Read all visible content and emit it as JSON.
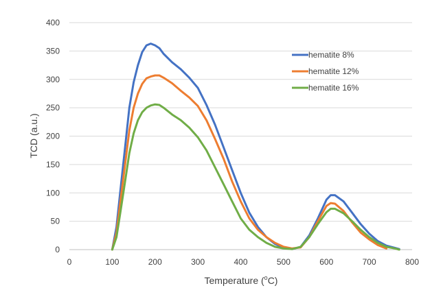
{
  "chart_data": {
    "type": "line",
    "xlabel_main": "Temperature (",
    "xlabel_sup": "o",
    "xlabel_tail": "C)",
    "ylabel": "TCD (a.u.)",
    "xlim": [
      0,
      800
    ],
    "ylim": [
      0,
      400
    ],
    "x_ticks": [
      0,
      100,
      200,
      300,
      400,
      500,
      600,
      700,
      800
    ],
    "y_ticks": [
      0,
      50,
      100,
      150,
      200,
      250,
      300,
      350,
      400
    ],
    "grid": "horizontal",
    "legend_position": "top-right",
    "series": [
      {
        "name": "hematite 8%",
        "color": "#4472C4",
        "points": [
          [
            100,
            0
          ],
          [
            110,
            40
          ],
          [
            120,
            110
          ],
          [
            130,
            180
          ],
          [
            140,
            250
          ],
          [
            150,
            295
          ],
          [
            160,
            325
          ],
          [
            170,
            348
          ],
          [
            180,
            360
          ],
          [
            190,
            363
          ],
          [
            200,
            360
          ],
          [
            210,
            355
          ],
          [
            220,
            345
          ],
          [
            240,
            330
          ],
          [
            260,
            318
          ],
          [
            280,
            303
          ],
          [
            300,
            285
          ],
          [
            320,
            255
          ],
          [
            340,
            220
          ],
          [
            360,
            180
          ],
          [
            380,
            140
          ],
          [
            400,
            100
          ],
          [
            420,
            65
          ],
          [
            440,
            40
          ],
          [
            460,
            22
          ],
          [
            480,
            10
          ],
          [
            500,
            3
          ],
          [
            520,
            1
          ],
          [
            540,
            5
          ],
          [
            560,
            25
          ],
          [
            580,
            55
          ],
          [
            600,
            88
          ],
          [
            610,
            96
          ],
          [
            620,
            96
          ],
          [
            640,
            85
          ],
          [
            660,
            65
          ],
          [
            680,
            45
          ],
          [
            700,
            28
          ],
          [
            720,
            15
          ],
          [
            740,
            7
          ],
          [
            760,
            3
          ],
          [
            770,
            1
          ]
        ]
      },
      {
        "name": "hematite 12%",
        "color": "#ED7D31",
        "points": [
          [
            100,
            0
          ],
          [
            110,
            30
          ],
          [
            120,
            90
          ],
          [
            130,
            150
          ],
          [
            140,
            210
          ],
          [
            150,
            250
          ],
          [
            160,
            275
          ],
          [
            170,
            292
          ],
          [
            180,
            302
          ],
          [
            190,
            305
          ],
          [
            200,
            307
          ],
          [
            210,
            307
          ],
          [
            220,
            303
          ],
          [
            240,
            293
          ],
          [
            260,
            280
          ],
          [
            280,
            268
          ],
          [
            300,
            253
          ],
          [
            320,
            228
          ],
          [
            340,
            195
          ],
          [
            360,
            160
          ],
          [
            380,
            120
          ],
          [
            400,
            85
          ],
          [
            420,
            55
          ],
          [
            440,
            35
          ],
          [
            460,
            22
          ],
          [
            480,
            12
          ],
          [
            500,
            5
          ],
          [
            520,
            2
          ],
          [
            540,
            4
          ],
          [
            560,
            22
          ],
          [
            580,
            50
          ],
          [
            600,
            77
          ],
          [
            610,
            82
          ],
          [
            620,
            81
          ],
          [
            640,
            68
          ],
          [
            660,
            48
          ],
          [
            680,
            30
          ],
          [
            700,
            18
          ],
          [
            720,
            8
          ],
          [
            740,
            2
          ]
        ]
      },
      {
        "name": "hematite 16%",
        "color": "#70AD47",
        "points": [
          [
            100,
            0
          ],
          [
            110,
            22
          ],
          [
            120,
            70
          ],
          [
            130,
            120
          ],
          [
            140,
            170
          ],
          [
            150,
            205
          ],
          [
            160,
            228
          ],
          [
            170,
            242
          ],
          [
            180,
            250
          ],
          [
            190,
            254
          ],
          [
            200,
            256
          ],
          [
            210,
            255
          ],
          [
            220,
            250
          ],
          [
            240,
            238
          ],
          [
            260,
            228
          ],
          [
            280,
            215
          ],
          [
            300,
            198
          ],
          [
            320,
            175
          ],
          [
            340,
            145
          ],
          [
            360,
            115
          ],
          [
            380,
            85
          ],
          [
            400,
            55
          ],
          [
            420,
            35
          ],
          [
            440,
            22
          ],
          [
            460,
            12
          ],
          [
            480,
            5
          ],
          [
            500,
            2
          ],
          [
            520,
            1
          ],
          [
            540,
            5
          ],
          [
            560,
            22
          ],
          [
            580,
            45
          ],
          [
            600,
            66
          ],
          [
            610,
            72
          ],
          [
            620,
            72
          ],
          [
            640,
            64
          ],
          [
            660,
            50
          ],
          [
            680,
            35
          ],
          [
            700,
            22
          ],
          [
            720,
            12
          ],
          [
            740,
            5
          ],
          [
            760,
            2
          ],
          [
            770,
            0
          ]
        ]
      }
    ]
  }
}
